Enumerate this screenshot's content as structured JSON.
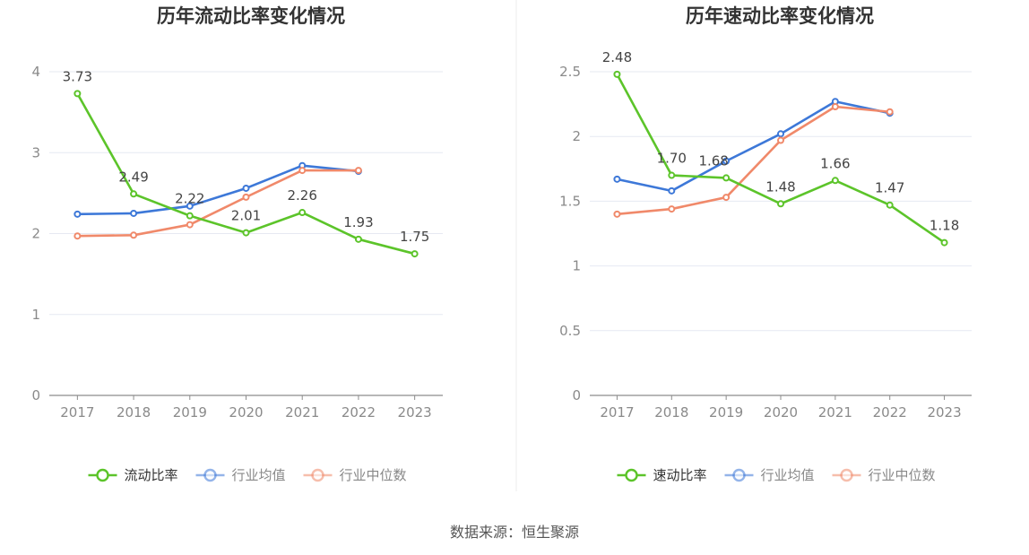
{
  "source_text": "数据来源：恒生聚源",
  "chart_data": [
    {
      "type": "line",
      "title": "历年流动比率变化情况",
      "xlabel": "",
      "ylabel": "",
      "categories": [
        "2017",
        "2018",
        "2019",
        "2020",
        "2021",
        "2022",
        "2023"
      ],
      "ylim": [
        0,
        4
      ],
      "yticks": [
        0,
        1,
        2,
        3,
        4
      ],
      "y_tick_labels": [
        "0",
        "1",
        "2",
        "3",
        "4"
      ],
      "grid": true,
      "legend_position": "bottom",
      "series": [
        {
          "name": "流动比率",
          "color": "#5cc42a",
          "values": [
            3.73,
            2.49,
            2.22,
            2.01,
            2.26,
            1.93,
            1.75
          ],
          "data_labels": [
            "3.73",
            "2.49",
            "2.22",
            "2.01",
            "2.26",
            "1.93",
            "1.75"
          ]
        },
        {
          "name": "行业均值",
          "color": "#3d78d8",
          "values": [
            2.24,
            2.25,
            2.34,
            2.56,
            2.84,
            2.77,
            null
          ]
        },
        {
          "name": "行业中位数",
          "color": "#f0896a",
          "values": [
            1.97,
            1.98,
            2.11,
            2.45,
            2.78,
            2.78,
            null
          ]
        }
      ]
    },
    {
      "type": "line",
      "title": "历年速动比率变化情况",
      "xlabel": "",
      "ylabel": "",
      "categories": [
        "2017",
        "2018",
        "2019",
        "2020",
        "2021",
        "2022",
        "2023"
      ],
      "ylim": [
        0,
        2.5
      ],
      "yticks": [
        0,
        0.5,
        1,
        1.5,
        2,
        2.5
      ],
      "y_tick_labels": [
        "0",
        "0.5",
        "1",
        "1.5",
        "2",
        "2.5"
      ],
      "grid": true,
      "legend_position": "bottom",
      "series": [
        {
          "name": "速动比率",
          "color": "#5cc42a",
          "values": [
            2.48,
            1.7,
            1.68,
            1.48,
            1.66,
            1.47,
            1.18
          ],
          "data_labels": [
            "2.48",
            "1.70",
            "1.68",
            "1.48",
            "1.66",
            "1.47",
            "1.18"
          ]
        },
        {
          "name": "行业均值",
          "color": "#3d78d8",
          "values": [
            1.67,
            1.58,
            1.81,
            2.02,
            2.27,
            2.18,
            null
          ]
        },
        {
          "name": "行业中位数",
          "color": "#f0896a",
          "values": [
            1.4,
            1.44,
            1.53,
            1.97,
            2.23,
            2.19,
            null
          ]
        }
      ]
    }
  ]
}
